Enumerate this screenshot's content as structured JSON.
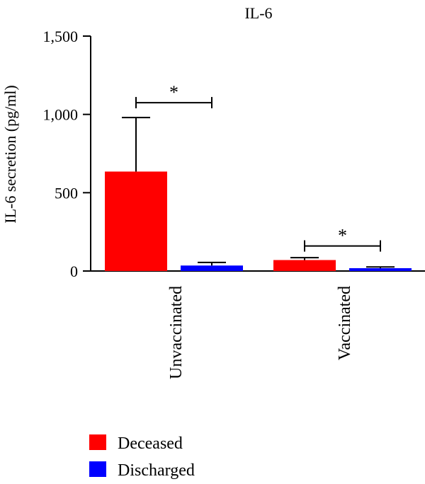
{
  "chart_data": {
    "type": "bar",
    "title": "IL-6",
    "ylabel": "IL-6 secretion (pg/ml)",
    "xlabel": "",
    "ylim": [
      0,
      1500
    ],
    "yticks": [
      0,
      500,
      1000,
      1500
    ],
    "ytick_labels": [
      "0",
      "500",
      "1,000",
      "1,500"
    ],
    "categories": [
      "Unvaccinated",
      "Vaccinated"
    ],
    "series": [
      {
        "name": "Deceased",
        "color": "#ff0000",
        "values": [
          635,
          70
        ],
        "errors": [
          345,
          15
        ]
      },
      {
        "name": "Discharged",
        "color": "#0000ff",
        "values": [
          35,
          18
        ],
        "errors": [
          20,
          8
        ]
      }
    ],
    "significance": [
      {
        "category": "Unvaccinated",
        "label": "*",
        "y": 1075
      },
      {
        "category": "Vaccinated",
        "label": "*",
        "y": 160
      }
    ],
    "legend_position": "bottom-left",
    "grid": false
  }
}
